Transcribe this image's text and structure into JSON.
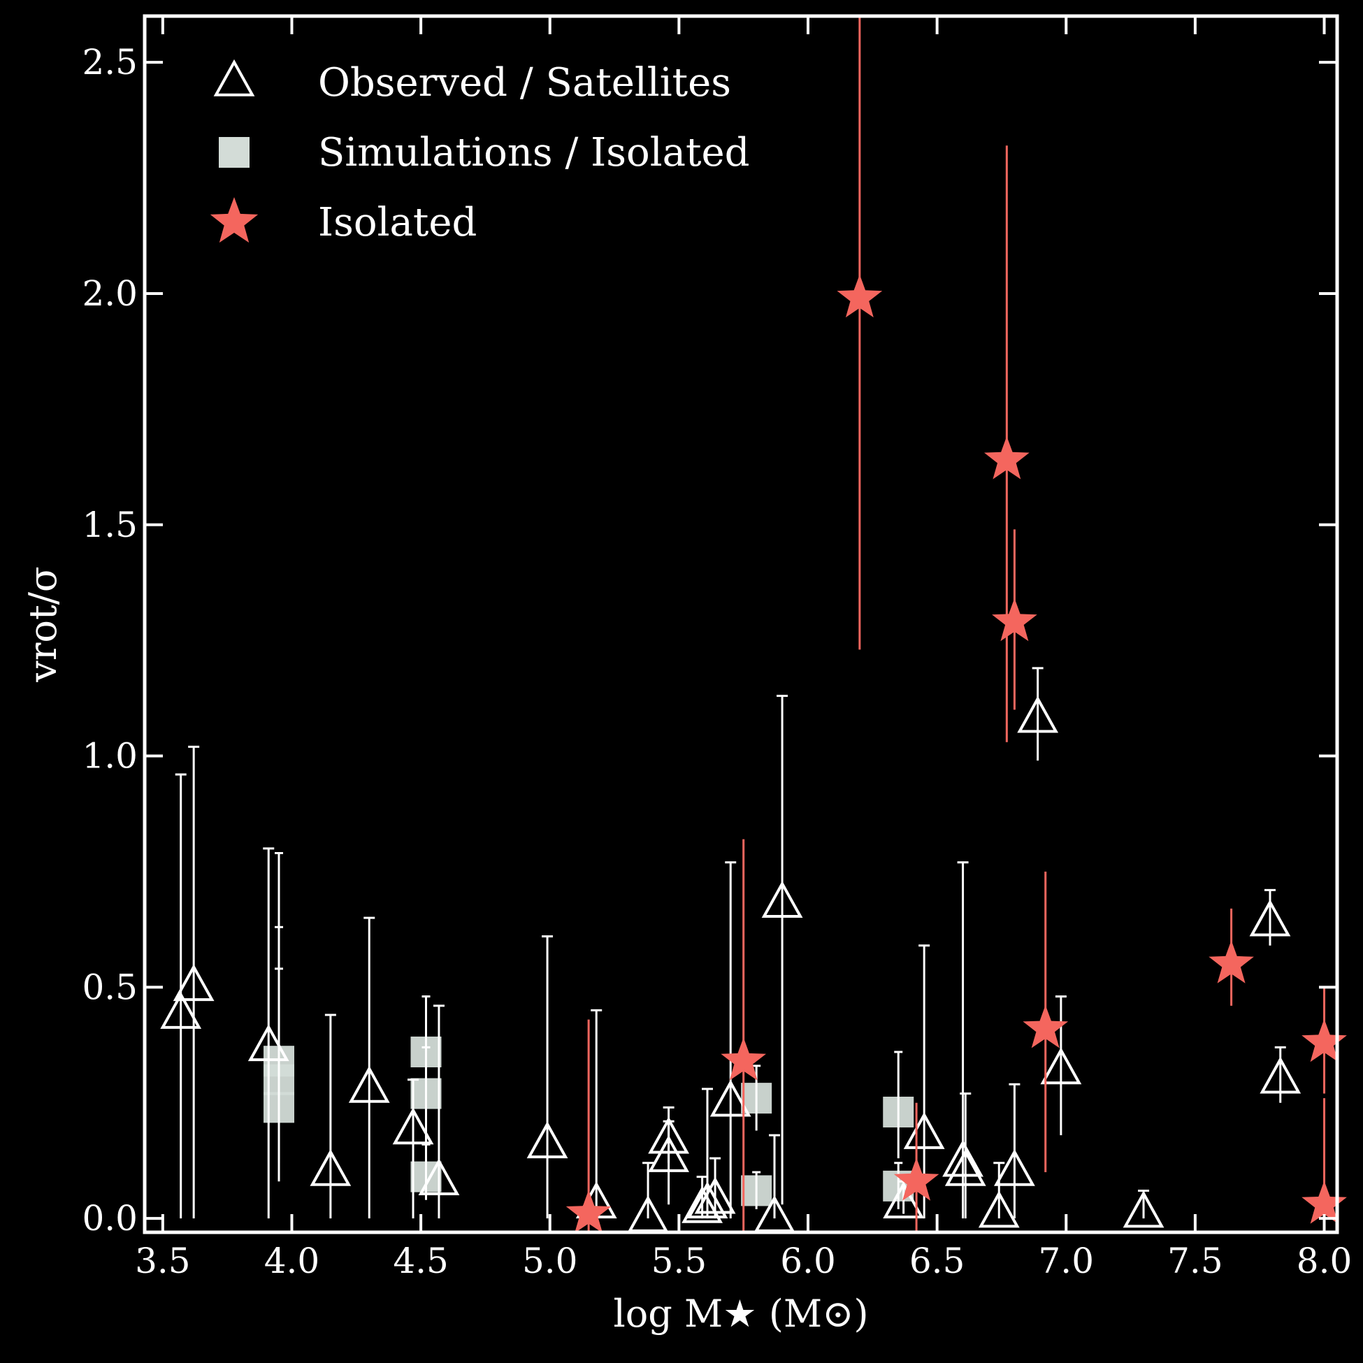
{
  "chart_data": {
    "type": "scatter",
    "xlabel": "log M★ (M⊙)",
    "ylabel": "vrot/σ",
    "xlim": [
      3.43,
      8.05
    ],
    "ylim": [
      -0.03,
      2.6
    ],
    "xticks": [
      "3.5",
      "4.0",
      "4.5",
      "5.0",
      "5.5",
      "6.0",
      "6.5",
      "7.0",
      "7.5",
      "8.0"
    ],
    "yticks": [
      "0.0",
      "0.5",
      "1.0",
      "1.5",
      "2.0",
      "2.5"
    ],
    "grid": false,
    "legend_position": "top-left",
    "colors": {
      "background": "#000000",
      "axes": "#ffffff",
      "observed": "#ffffff",
      "simulations": "#d3dcd7",
      "isolated": "#f4665e"
    },
    "series": [
      {
        "name": "Observed / Satellites",
        "marker": "open-triangle",
        "points": [
          {
            "x": 3.57,
            "y": 0.44,
            "lo": 0.0,
            "hi": 0.96
          },
          {
            "x": 3.62,
            "y": 0.5,
            "lo": 0.0,
            "hi": 1.02
          },
          {
            "x": 3.91,
            "y": 0.37,
            "lo": 0.0,
            "hi": 0.8
          },
          {
            "x": 4.15,
            "y": 0.1,
            "lo": 0.0,
            "hi": 0.44
          },
          {
            "x": 4.3,
            "y": 0.28,
            "lo": 0.0,
            "hi": 0.65
          },
          {
            "x": 4.47,
            "y": 0.19,
            "lo": 0.0,
            "hi": 0.3
          },
          {
            "x": 4.57,
            "y": 0.08,
            "lo": 0.0,
            "hi": 0.46
          },
          {
            "x": 4.99,
            "y": 0.16,
            "lo": 0.0,
            "hi": 0.61
          },
          {
            "x": 5.18,
            "y": 0.03,
            "lo": 0.0,
            "hi": 0.45
          },
          {
            "x": 5.38,
            "y": 0.0,
            "lo": 0.0,
            "hi": 0.12
          },
          {
            "x": 5.46,
            "y": 0.17,
            "lo": 0.12,
            "hi": 0.24
          },
          {
            "x": 5.46,
            "y": 0.13,
            "lo": 0.03,
            "hi": 0.21
          },
          {
            "x": 5.59,
            "y": 0.02,
            "lo": 0.0,
            "hi": 0.09
          },
          {
            "x": 5.61,
            "y": 0.03,
            "lo": 0.0,
            "hi": 0.28
          },
          {
            "x": 5.64,
            "y": 0.04,
            "lo": 0.0,
            "hi": 0.13
          },
          {
            "x": 5.7,
            "y": 0.25,
            "lo": 0.0,
            "hi": 0.77
          },
          {
            "x": 5.87,
            "y": 0.0,
            "lo": 0.0,
            "hi": 0.18
          },
          {
            "x": 5.9,
            "y": 0.68,
            "lo": 0.03,
            "hi": 1.13
          },
          {
            "x": 6.37,
            "y": 0.03,
            "lo": 0.01,
            "hi": 0.08
          },
          {
            "x": 6.45,
            "y": 0.18,
            "lo": 0.0,
            "hi": 0.59
          },
          {
            "x": 6.6,
            "y": 0.12,
            "lo": 0.0,
            "hi": 0.77
          },
          {
            "x": 6.61,
            "y": 0.1,
            "lo": 0.0,
            "hi": 0.27
          },
          {
            "x": 6.74,
            "y": 0.01,
            "lo": 0.0,
            "hi": 0.12
          },
          {
            "x": 6.8,
            "y": 0.1,
            "lo": 0.0,
            "hi": 0.29
          },
          {
            "x": 6.89,
            "y": 1.08,
            "lo": 0.99,
            "hi": 1.19
          },
          {
            "x": 6.98,
            "y": 0.32,
            "lo": 0.18,
            "hi": 0.48
          },
          {
            "x": 7.3,
            "y": 0.01,
            "lo": 0.0,
            "hi": 0.06
          },
          {
            "x": 7.79,
            "y": 0.64,
            "lo": 0.59,
            "hi": 0.71
          },
          {
            "x": 7.83,
            "y": 0.3,
            "lo": 0.25,
            "hi": 0.37
          }
        ]
      },
      {
        "name": "Simulations / Isolated",
        "marker": "filled-square",
        "points": [
          {
            "x": 3.95,
            "y": 0.34,
            "lo": 0.08,
            "hi": 0.79
          },
          {
            "x": 3.95,
            "y": 0.3,
            "lo": 0.13,
            "hi": 0.63
          },
          {
            "x": 3.95,
            "y": 0.24,
            "lo": 0.12,
            "hi": 0.54
          },
          {
            "x": 4.52,
            "y": 0.36,
            "lo": 0.25,
            "hi": 0.48
          },
          {
            "x": 4.52,
            "y": 0.27,
            "lo": 0.15,
            "hi": 0.37
          },
          {
            "x": 4.52,
            "y": 0.09,
            "lo": 0.04,
            "hi": 0.16
          },
          {
            "x": 5.8,
            "y": 0.26,
            "lo": 0.19,
            "hi": 0.33
          },
          {
            "x": 5.8,
            "y": 0.06,
            "lo": 0.02,
            "hi": 0.1
          },
          {
            "x": 6.35,
            "y": 0.23,
            "lo": 0.13,
            "hi": 0.36
          },
          {
            "x": 6.35,
            "y": 0.07,
            "lo": 0.02,
            "hi": 0.12
          }
        ]
      },
      {
        "name": "Isolated",
        "marker": "filled-star",
        "points": [
          {
            "x": 5.15,
            "y": 0.01,
            "lo": -0.03,
            "hi": 0.43
          },
          {
            "x": 5.75,
            "y": 0.34,
            "lo": -0.03,
            "hi": 0.82
          },
          {
            "x": 6.2,
            "y": 1.99,
            "lo": 1.23,
            "hi": 2.6
          },
          {
            "x": 6.42,
            "y": 0.08,
            "lo": -0.03,
            "hi": 0.25
          },
          {
            "x": 6.77,
            "y": 1.64,
            "lo": 1.03,
            "hi": 2.32
          },
          {
            "x": 6.8,
            "y": 1.29,
            "lo": 1.1,
            "hi": 1.49
          },
          {
            "x": 6.92,
            "y": 0.41,
            "lo": 0.1,
            "hi": 0.75
          },
          {
            "x": 7.64,
            "y": 0.55,
            "lo": 0.46,
            "hi": 0.67
          },
          {
            "x": 8.0,
            "y": 0.38,
            "lo": 0.27,
            "hi": 0.5
          },
          {
            "x": 8.0,
            "y": 0.03,
            "lo": -0.03,
            "hi": 0.26
          }
        ]
      }
    ]
  }
}
